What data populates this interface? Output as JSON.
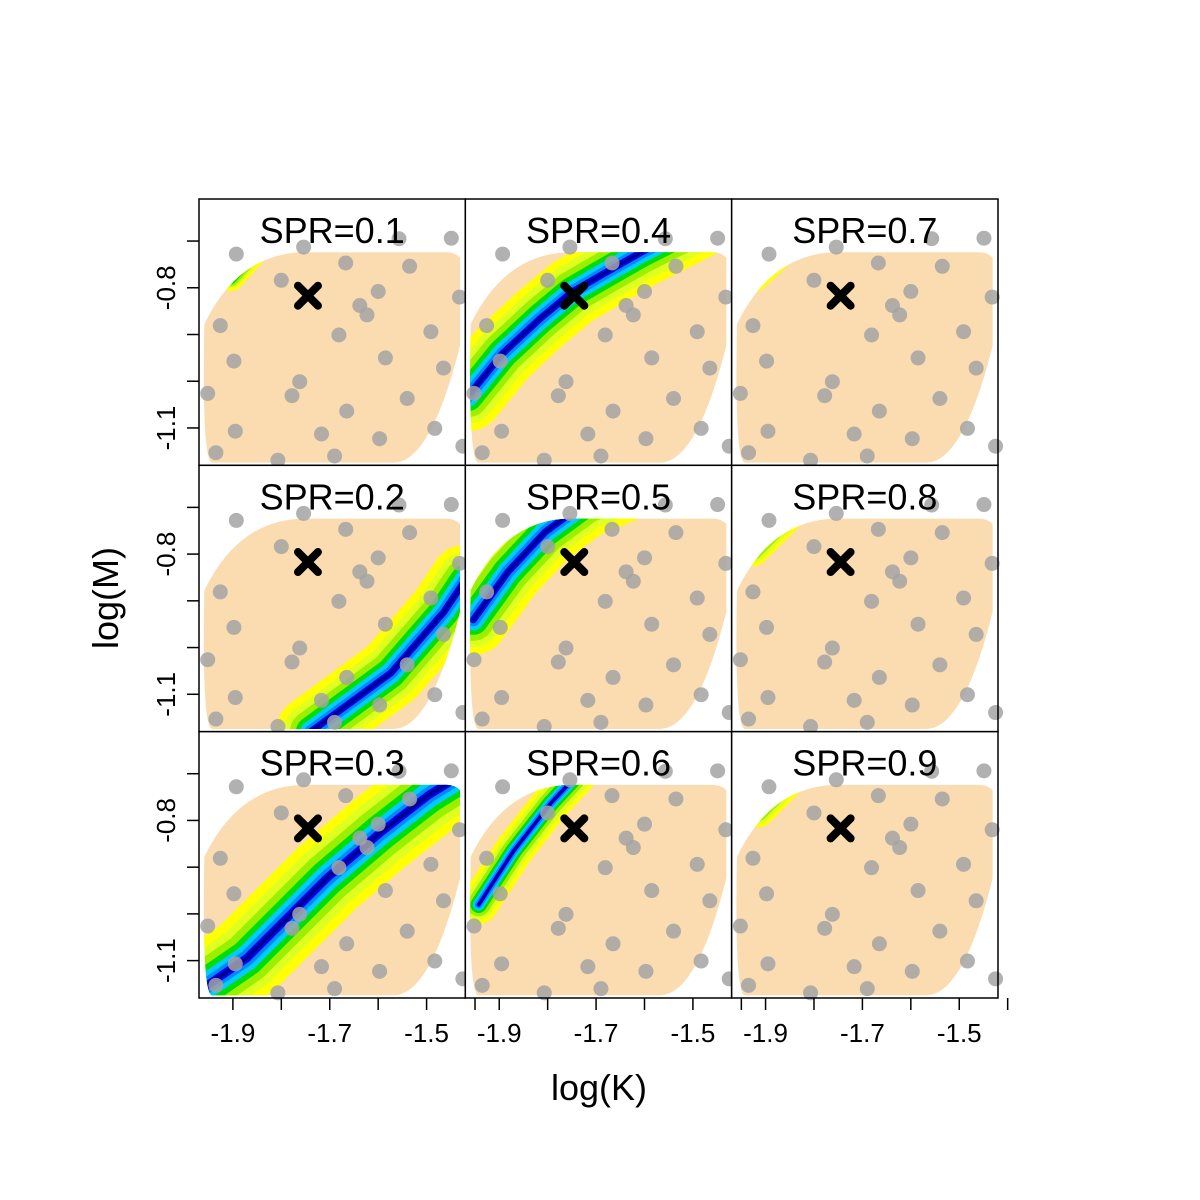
{
  "chart_data": {
    "type": "heatmap",
    "xlabel": "log(K)",
    "ylabel": "log(M)",
    "xlim": [
      -1.97,
      -1.42
    ],
    "ylim": [
      -1.18,
      -0.61
    ],
    "xticks": [
      -1.9,
      -1.8,
      -1.7,
      -1.6,
      -1.5,
      -1.4
    ],
    "xtick_labels": [
      "-1.9",
      "-1.7",
      "-1.5"
    ],
    "yticks": [
      -0.7,
      -0.8,
      -0.9,
      -1.0,
      -1.1
    ],
    "ytick_labels": [
      "-0.8",
      "-1.1"
    ],
    "grid": false,
    "layout": "3x3 grid, column-major (SPR=0.1..0.3 left column, 0.4..0.6 middle, 0.7..0.9 right)",
    "colors": {
      "region": "#fbdcb0",
      "points": "#a3a3a3",
      "scale_low_to_high": [
        "#ffff00",
        "#bfff00",
        "#00dd00",
        "#00ccff",
        "#0088ff",
        "#0000ff",
        "#00008b"
      ]
    },
    "reference_point": {
      "marker": "X",
      "x": -1.745,
      "y": -0.817
    },
    "design_points": [
      {
        "x": -1.893,
        "y": -0.728
      },
      {
        "x": -1.754,
        "y": -0.713
      },
      {
        "x": -1.557,
        "y": -0.695
      },
      {
        "x": -1.6,
        "y": -0.808
      },
      {
        "x": -1.667,
        "y": -0.747
      },
      {
        "x": -1.449,
        "y": -0.694
      },
      {
        "x": -1.535,
        "y": -0.754
      },
      {
        "x": -1.432,
        "y": -0.82
      },
      {
        "x": -1.8,
        "y": -0.784
      },
      {
        "x": -1.623,
        "y": -0.858
      },
      {
        "x": -1.638,
        "y": -0.838
      },
      {
        "x": -1.926,
        "y": -0.881
      },
      {
        "x": -1.898,
        "y": -0.957
      },
      {
        "x": -1.681,
        "y": -0.901
      },
      {
        "x": -1.585,
        "y": -0.95
      },
      {
        "x": -1.491,
        "y": -0.894
      },
      {
        "x": -1.465,
        "y": -0.972
      },
      {
        "x": -1.762,
        "y": -1.001
      },
      {
        "x": -1.778,
        "y": -1.031
      },
      {
        "x": -1.952,
        "y": -1.026
      },
      {
        "x": -1.54,
        "y": -1.037
      },
      {
        "x": -1.665,
        "y": -1.064
      },
      {
        "x": -1.717,
        "y": -1.113
      },
      {
        "x": -1.895,
        "y": -1.107
      },
      {
        "x": -1.597,
        "y": -1.123
      },
      {
        "x": -1.483,
        "y": -1.101
      },
      {
        "x": -1.425,
        "y": -1.139
      },
      {
        "x": -1.807,
        "y": -1.169
      },
      {
        "x": -1.69,
        "y": -1.16
      },
      {
        "x": -1.935,
        "y": -1.153
      }
    ],
    "panels": [
      {
        "title": "SPR=0.1",
        "spr": 0.1
      },
      {
        "title": "SPR=0.2",
        "spr": 0.2
      },
      {
        "title": "SPR=0.3",
        "spr": 0.3
      },
      {
        "title": "SPR=0.4",
        "spr": 0.4
      },
      {
        "title": "SPR=0.5",
        "spr": 0.5
      },
      {
        "title": "SPR=0.6",
        "spr": 0.6
      },
      {
        "title": "SPR=0.7",
        "spr": 0.7
      },
      {
        "title": "SPR=0.8",
        "spr": 0.8
      },
      {
        "title": "SPR=0.9",
        "spr": 0.9
      }
    ]
  }
}
